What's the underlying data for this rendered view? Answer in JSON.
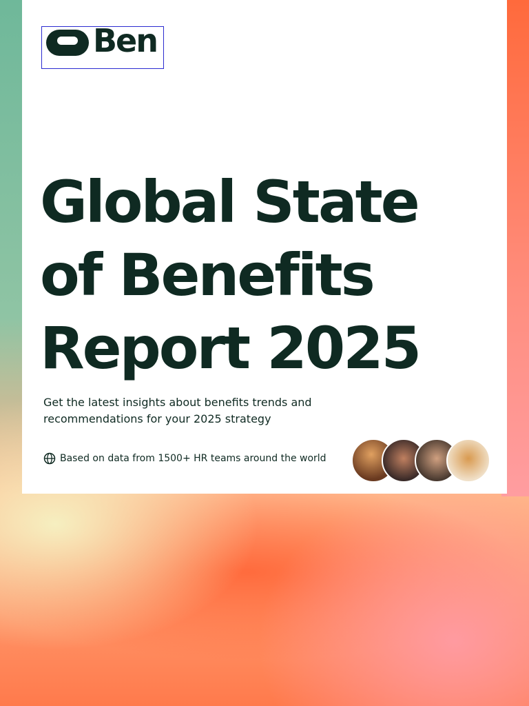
{
  "logo": "Ben",
  "title": "Global State of Benefits Report 2025",
  "subtitle": "Get the latest insights about benefits trends and recommendations for your 2025 strategy",
  "note": "Based on data from 1500+ HR teams around the world"
}
